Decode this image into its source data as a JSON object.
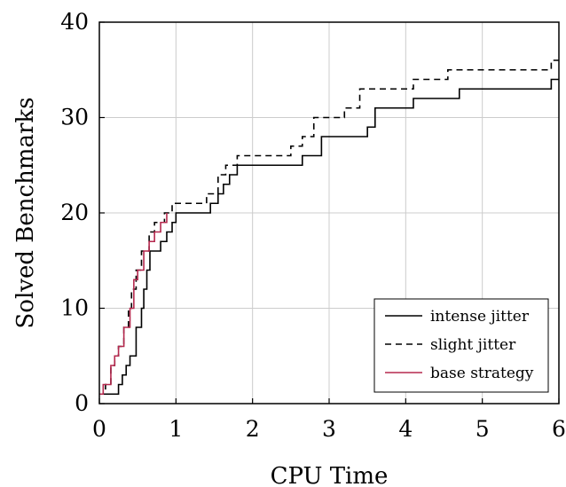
{
  "chart_data": {
    "type": "line",
    "title": "",
    "xlabel": "CPU Time",
    "ylabel": "Solved Benchmarks",
    "xlim": [
      0,
      6
    ],
    "ylim": [
      0,
      40
    ],
    "x_ticks": [
      "0",
      "1",
      "2",
      "3",
      "4",
      "5",
      "6"
    ],
    "y_ticks": [
      "0",
      "10",
      "20",
      "30",
      "40"
    ],
    "grid": true,
    "legend_position": "bottom-right",
    "step": true,
    "series": [
      {
        "name": "intense jitter",
        "color": "#000000",
        "dash": "solid",
        "points": [
          [
            0.0,
            1
          ],
          [
            0.25,
            2
          ],
          [
            0.3,
            3
          ],
          [
            0.35,
            4
          ],
          [
            0.4,
            5
          ],
          [
            0.48,
            8
          ],
          [
            0.55,
            10
          ],
          [
            0.58,
            12
          ],
          [
            0.62,
            14
          ],
          [
            0.66,
            16
          ],
          [
            0.8,
            17
          ],
          [
            0.88,
            18
          ],
          [
            0.95,
            19
          ],
          [
            1.0,
            20
          ],
          [
            1.45,
            21
          ],
          [
            1.55,
            22
          ],
          [
            1.62,
            23
          ],
          [
            1.7,
            24
          ],
          [
            1.8,
            25
          ],
          [
            2.65,
            26
          ],
          [
            2.9,
            28
          ],
          [
            3.5,
            29
          ],
          [
            3.6,
            31
          ],
          [
            4.1,
            32
          ],
          [
            4.7,
            33
          ],
          [
            5.9,
            34
          ],
          [
            6.0,
            34
          ]
        ]
      },
      {
        "name": "slight jitter",
        "color": "#000000",
        "dash": "dashed",
        "points": [
          [
            0.0,
            1
          ],
          [
            0.08,
            2
          ],
          [
            0.15,
            4
          ],
          [
            0.2,
            5
          ],
          [
            0.25,
            6
          ],
          [
            0.32,
            8
          ],
          [
            0.38,
            10
          ],
          [
            0.42,
            12
          ],
          [
            0.48,
            14
          ],
          [
            0.55,
            16
          ],
          [
            0.65,
            18
          ],
          [
            0.72,
            19
          ],
          [
            0.85,
            20
          ],
          [
            0.95,
            21
          ],
          [
            1.4,
            22
          ],
          [
            1.55,
            24
          ],
          [
            1.65,
            25
          ],
          [
            1.8,
            26
          ],
          [
            2.5,
            27
          ],
          [
            2.65,
            28
          ],
          [
            2.8,
            30
          ],
          [
            3.2,
            31
          ],
          [
            3.4,
            33
          ],
          [
            4.1,
            34
          ],
          [
            4.55,
            35
          ],
          [
            5.9,
            36
          ],
          [
            6.0,
            36
          ]
        ]
      },
      {
        "name": "base strategy",
        "color": "#b5294e",
        "dash": "solid",
        "points": [
          [
            0.0,
            1
          ],
          [
            0.05,
            2
          ],
          [
            0.15,
            4
          ],
          [
            0.2,
            5
          ],
          [
            0.25,
            6
          ],
          [
            0.32,
            8
          ],
          [
            0.4,
            10
          ],
          [
            0.45,
            13
          ],
          [
            0.5,
            14
          ],
          [
            0.58,
            16
          ],
          [
            0.65,
            17
          ],
          [
            0.72,
            18
          ],
          [
            0.8,
            19
          ],
          [
            0.88,
            20
          ]
        ]
      }
    ]
  }
}
